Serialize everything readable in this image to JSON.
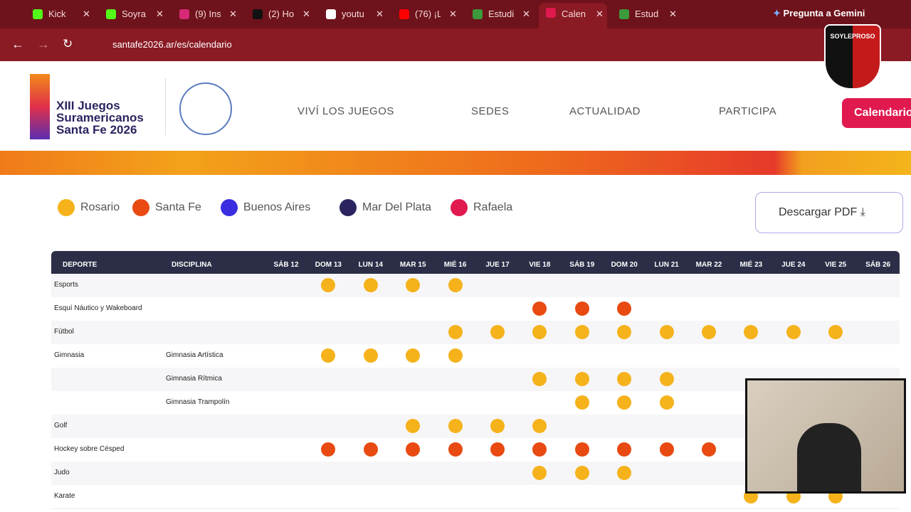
{
  "browser": {
    "tabs": [
      "Kick",
      "Soyra",
      "(9) Ins",
      "(2) Ho",
      "youtu",
      "(76) ¡L",
      "Estudi",
      "Calen",
      "Estud"
    ],
    "active_tab": 7,
    "gemini": "Pregunta a Gemini",
    "url": "santafe2026.ar/es/calendario"
  },
  "overlay": {
    "logo": "SOYLEPROSO"
  },
  "header": {
    "logo_lines": [
      "XIII Juegos",
      "Suramericanos",
      "Santa Fe 2026"
    ],
    "nav": [
      "VIVÍ LOS JUEGOS",
      "SEDES",
      "ACTUALIDAD",
      "PARTICIPA"
    ],
    "cta": "Calendario"
  },
  "legend": [
    {
      "name": "Rosario",
      "color": "#f5b21b"
    },
    {
      "name": "Santa Fe",
      "color": "#e84a12"
    },
    {
      "name": "Buenos Aires",
      "color": "#3a2ee0"
    },
    {
      "name": "Mar Del Plata",
      "color": "#2a2560"
    },
    {
      "name": "Rafaela",
      "color": "#e0194f"
    }
  ],
  "download": "Descargar PDF",
  "table": {
    "headers": [
      "DEPORTE",
      "DISCIPLINA"
    ],
    "days": [
      "SÁB 12",
      "DOM 13",
      "LUN 14",
      "MAR 15",
      "MIÉ 16",
      "JUE 17",
      "VIE 18",
      "SÁB 19",
      "DOM 20",
      "LUN 21",
      "MAR 22",
      "MIÉ 23",
      "JUE 24",
      "VIE 25",
      "SÁB 26"
    ],
    "rows": [
      {
        "sport": "Esports",
        "discipline": null,
        "venues": [
          null,
          0,
          0,
          0,
          0,
          null,
          null,
          null,
          null,
          null,
          null,
          null,
          null,
          null,
          null
        ]
      },
      {
        "sport": "Esquí Náutico y Wakeboard",
        "discipline": null,
        "venues": [
          null,
          null,
          null,
          null,
          null,
          null,
          1,
          1,
          1,
          null,
          null,
          null,
          null,
          null,
          null
        ]
      },
      {
        "sport": "Fútbol",
        "discipline": null,
        "venues": [
          null,
          null,
          null,
          null,
          0,
          0,
          0,
          0,
          0,
          0,
          0,
          0,
          0,
          0,
          null
        ]
      },
      {
        "sport": "Gimnasia",
        "discipline": "Gimnasia Artística",
        "venues": [
          null,
          0,
          0,
          0,
          0,
          null,
          null,
          null,
          null,
          null,
          null,
          null,
          null,
          null,
          null
        ]
      },
      {
        "sport": null,
        "discipline": "Gimnasia Rítmica",
        "venues": [
          null,
          null,
          null,
          null,
          null,
          null,
          0,
          0,
          0,
          0,
          null,
          null,
          null,
          null,
          null
        ]
      },
      {
        "sport": null,
        "discipline": "Gimnasia Trampolín",
        "venues": [
          null,
          null,
          null,
          null,
          null,
          null,
          null,
          0,
          0,
          0,
          null,
          null,
          null,
          null,
          null
        ]
      },
      {
        "sport": "Golf",
        "discipline": null,
        "venues": [
          null,
          null,
          null,
          0,
          0,
          0,
          0,
          null,
          null,
          null,
          null,
          null,
          null,
          null,
          null
        ]
      },
      {
        "sport": "Hockey sobre Césped",
        "discipline": null,
        "venues": [
          null,
          1,
          1,
          1,
          1,
          1,
          1,
          1,
          1,
          1,
          1,
          null,
          null,
          null,
          null
        ]
      },
      {
        "sport": "Judo",
        "discipline": null,
        "venues": [
          null,
          null,
          null,
          null,
          null,
          null,
          0,
          0,
          0,
          null,
          null,
          null,
          null,
          null,
          null
        ]
      },
      {
        "sport": "Karate",
        "discipline": null,
        "venues": [
          null,
          null,
          null,
          null,
          null,
          null,
          null,
          null,
          null,
          null,
          null,
          0,
          0,
          0,
          null
        ]
      }
    ]
  }
}
